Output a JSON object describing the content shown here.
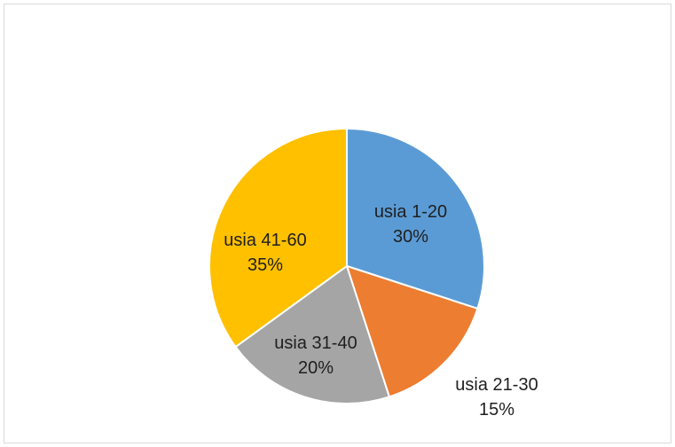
{
  "chart_data": {
    "type": "pie",
    "title": "",
    "categories": [
      "usia 1-20",
      "usia 21-30",
      "usia 31-40",
      "usia 41-60"
    ],
    "values": [
      30,
      15,
      20,
      35
    ],
    "percent_labels": [
      "30%",
      "15%",
      "20%",
      "35%"
    ],
    "colors": [
      "#5b9bd5",
      "#ed7d31",
      "#a5a5a5",
      "#ffc000"
    ],
    "start_angle_deg": 0,
    "direction": "clockwise",
    "legend": "none",
    "data_labels": "category-and-percent"
  }
}
